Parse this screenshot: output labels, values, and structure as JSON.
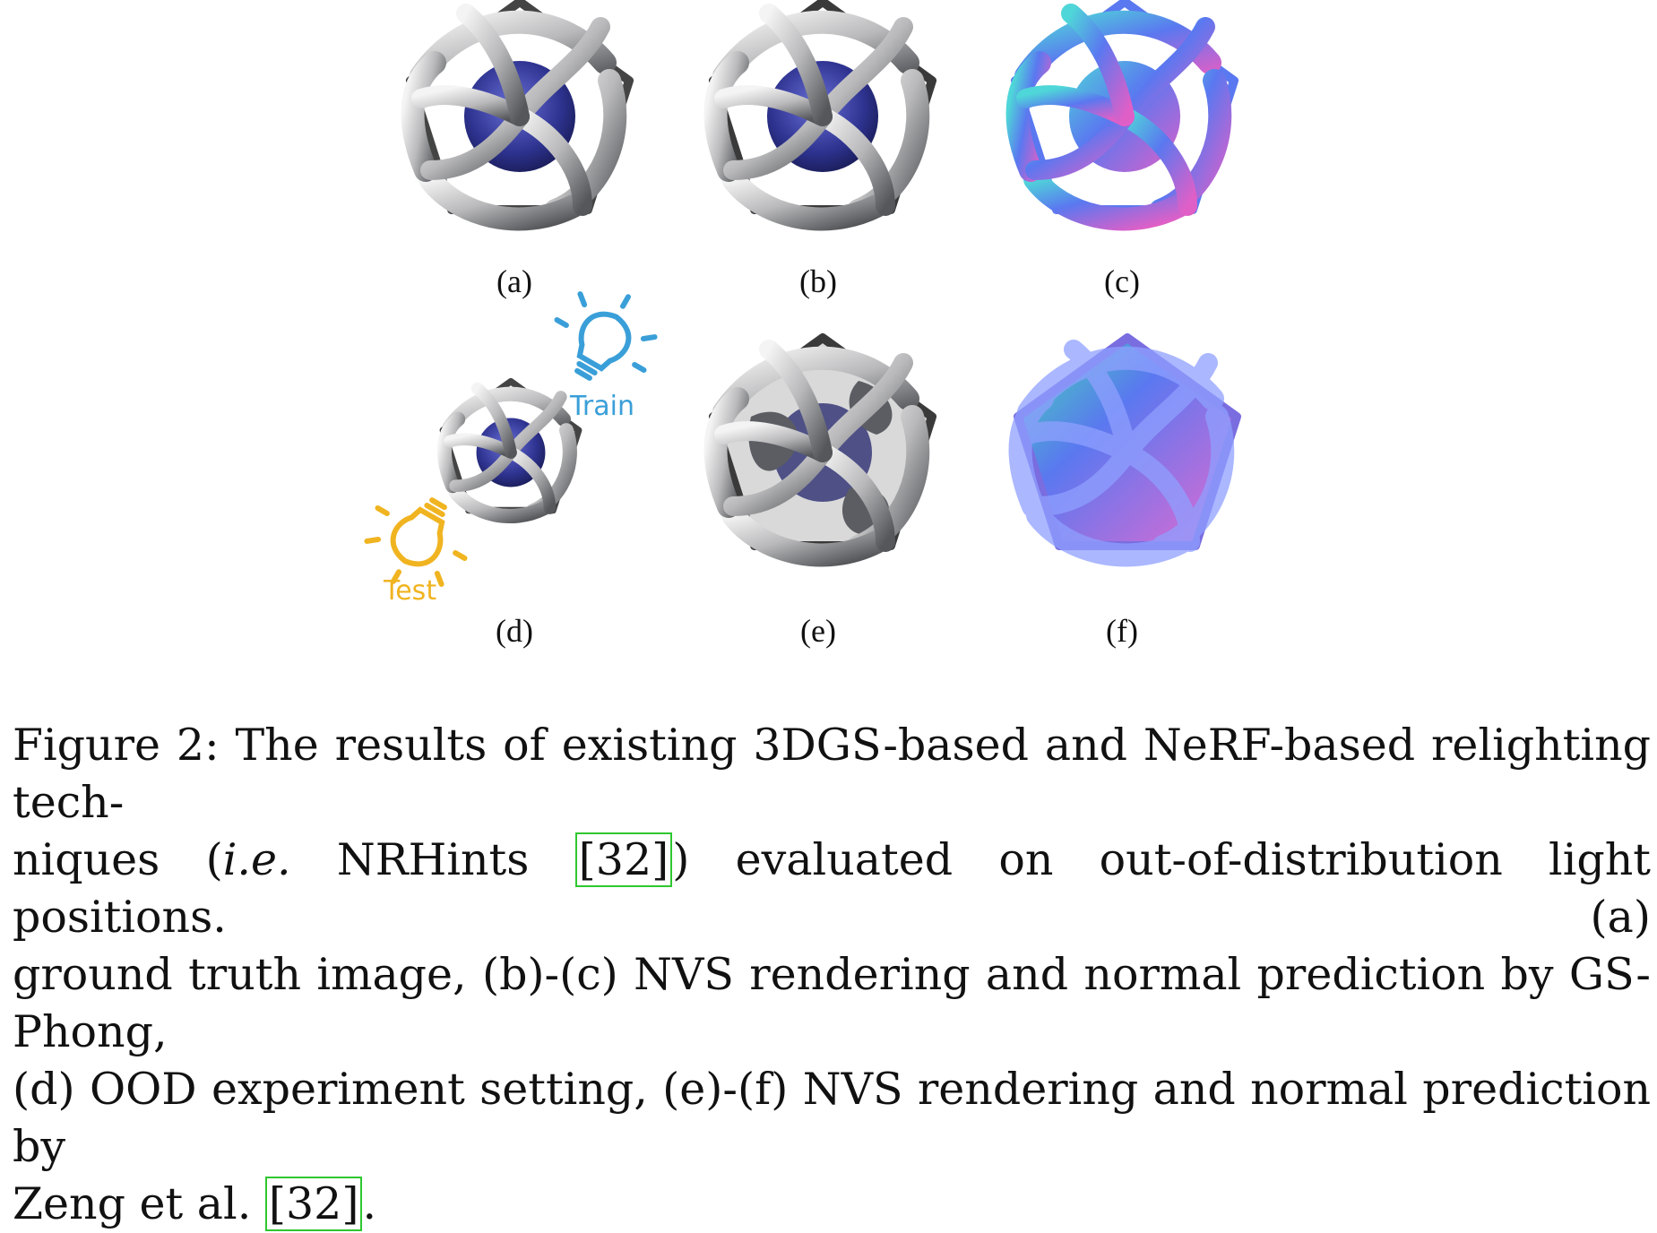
{
  "panels": [
    {
      "label": "(a)"
    },
    {
      "label": "(b)"
    },
    {
      "label": "(c)"
    },
    {
      "label": "(d)"
    },
    {
      "label": "(e)"
    },
    {
      "label": "(f)"
    }
  ],
  "lights": {
    "train_label": "Train",
    "test_label": "Test",
    "train_color": "#3a9fd8",
    "test_color": "#f0b421"
  },
  "caption": {
    "l1": "Figure 2: The results of existing 3DGS-based and NeRF-based relighting tech-",
    "l2_a": "niques (",
    "l2_ie": "i.e.",
    "l2_b": " NRHints ",
    "l2_cite": "[32]",
    "l2_c": ") evaluated on out-of-distribution light positions. (a)",
    "l3": "ground truth image, (b)-(c) NVS rendering and normal prediction by GS-Phong,",
    "l4": "(d) OOD experiment setting, (e)-(f) NVS rendering and normal prediction by",
    "l5_a": "Zeng et al. ",
    "l5_cite": "[32]",
    "l5_b": "."
  },
  "colors": {
    "metal": "#b9b9bb",
    "sphere": "#3a3f9e",
    "normal_pink": "#e05fc7",
    "normal_blue": "#5a78f0",
    "normal_cyan": "#4fd6d8",
    "cite_box": "#2fc72f"
  }
}
